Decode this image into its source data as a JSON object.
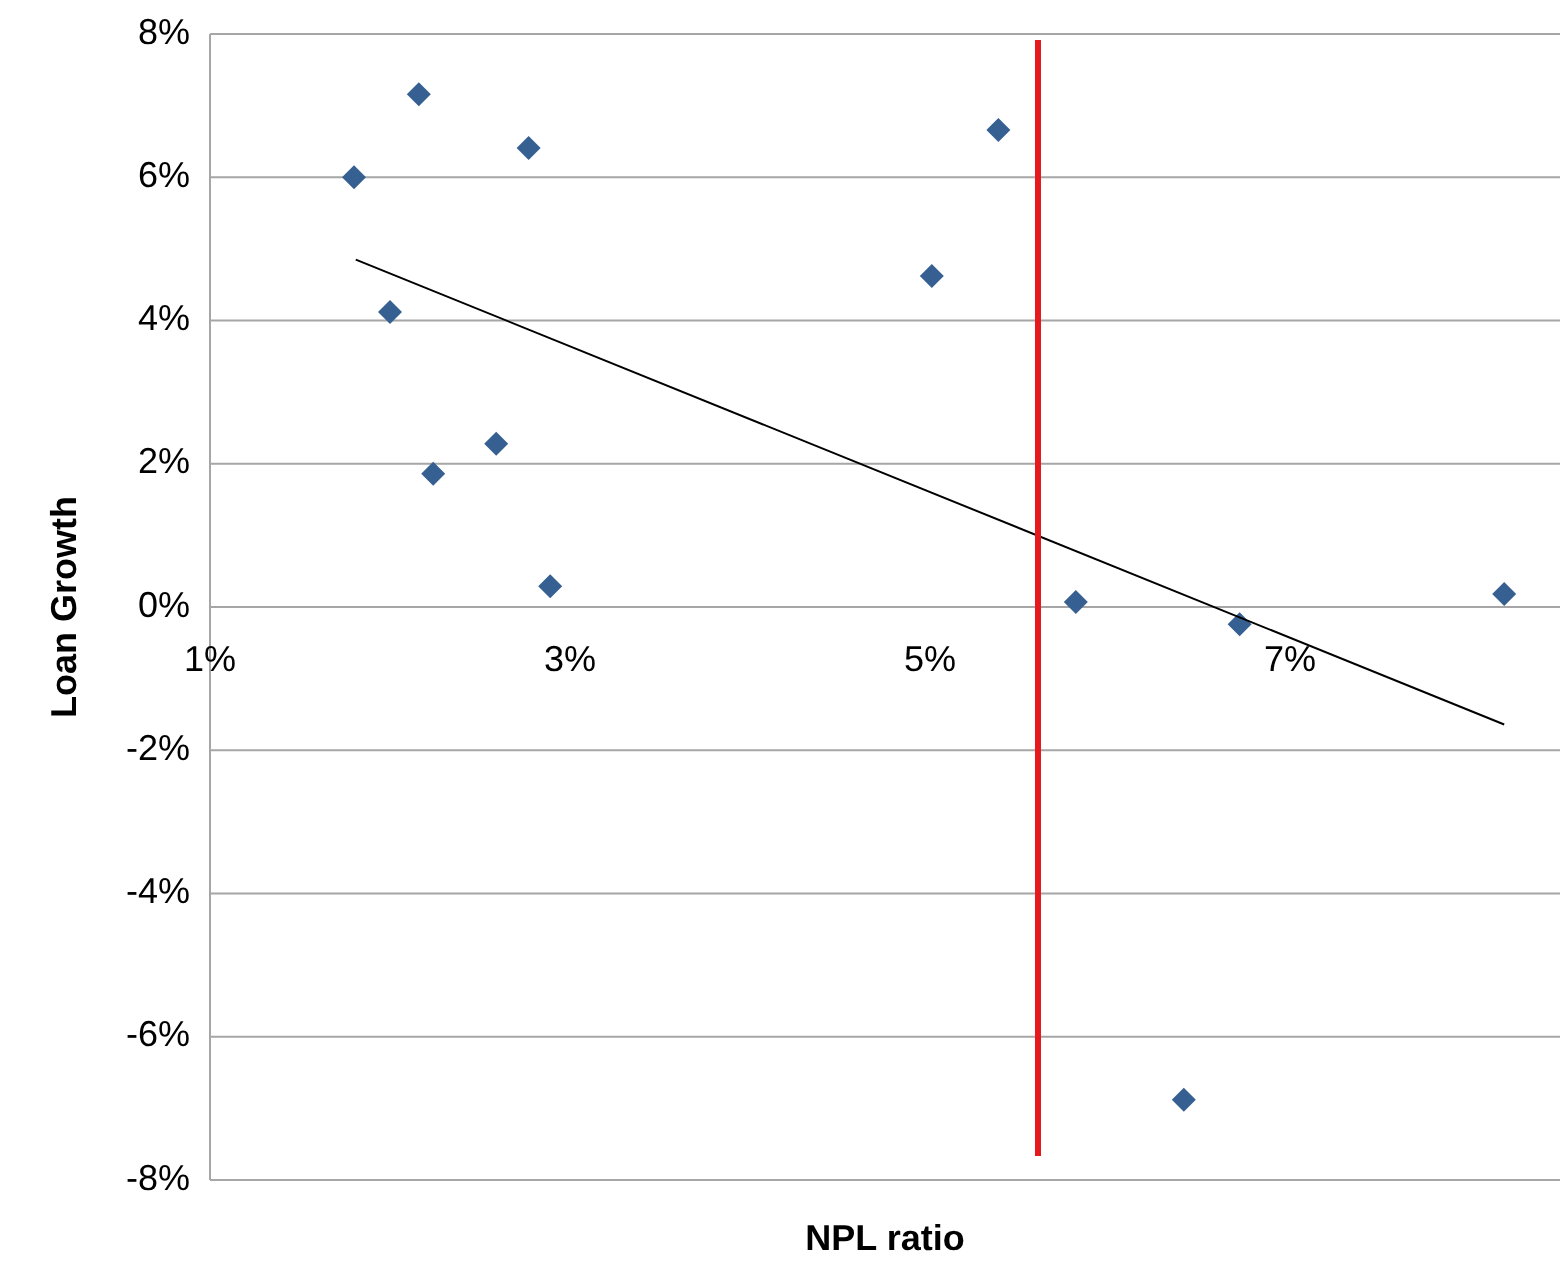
{
  "chart_data": {
    "type": "scatter",
    "xlabel": "NPL ratio",
    "ylabel": "Loan Growth",
    "xlim": [
      1,
      8.5
    ],
    "xticks": [
      {
        "value": 1,
        "label": "1%"
      },
      {
        "value": 3,
        "label": "3%"
      },
      {
        "value": 5,
        "label": "5%"
      },
      {
        "value": 7,
        "label": "7%"
      }
    ],
    "ylim": [
      -8,
      8
    ],
    "yticks": [
      {
        "value": -8,
        "label": "-8%"
      },
      {
        "value": -6,
        "label": "-6%"
      },
      {
        "value": -4,
        "label": "-4%"
      },
      {
        "value": -2,
        "label": "-2%"
      },
      {
        "value": 0,
        "label": "0%"
      },
      {
        "value": 2,
        "label": "2%"
      },
      {
        "value": 4,
        "label": "4%"
      },
      {
        "value": 6,
        "label": "6%"
      },
      {
        "value": 8,
        "label": "8%"
      }
    ],
    "grid": "y",
    "series": [
      {
        "marker": "diamond",
        "color": "#376092",
        "x": [
          1.8,
          2.16,
          2.77,
          2.0,
          2.59,
          2.24,
          2.89,
          5.01,
          5.38,
          5.81,
          6.72,
          8.19,
          6.41
        ],
        "values": [
          6.0,
          7.16,
          6.41,
          4.12,
          2.28,
          1.86,
          0.29,
          4.62,
          6.66,
          0.07,
          -0.24,
          0.18,
          -6.88
        ]
      },
      {
        "type": "line",
        "color": "#000000",
        "line_style": "solid",
        "x": [
          1.81,
          8.19
        ],
        "values": [
          4.85,
          -1.64
        ]
      }
    ],
    "ref_lines": [
      {
        "axis": "x",
        "value": 5.6,
        "color": "#e41a1c"
      }
    ]
  }
}
